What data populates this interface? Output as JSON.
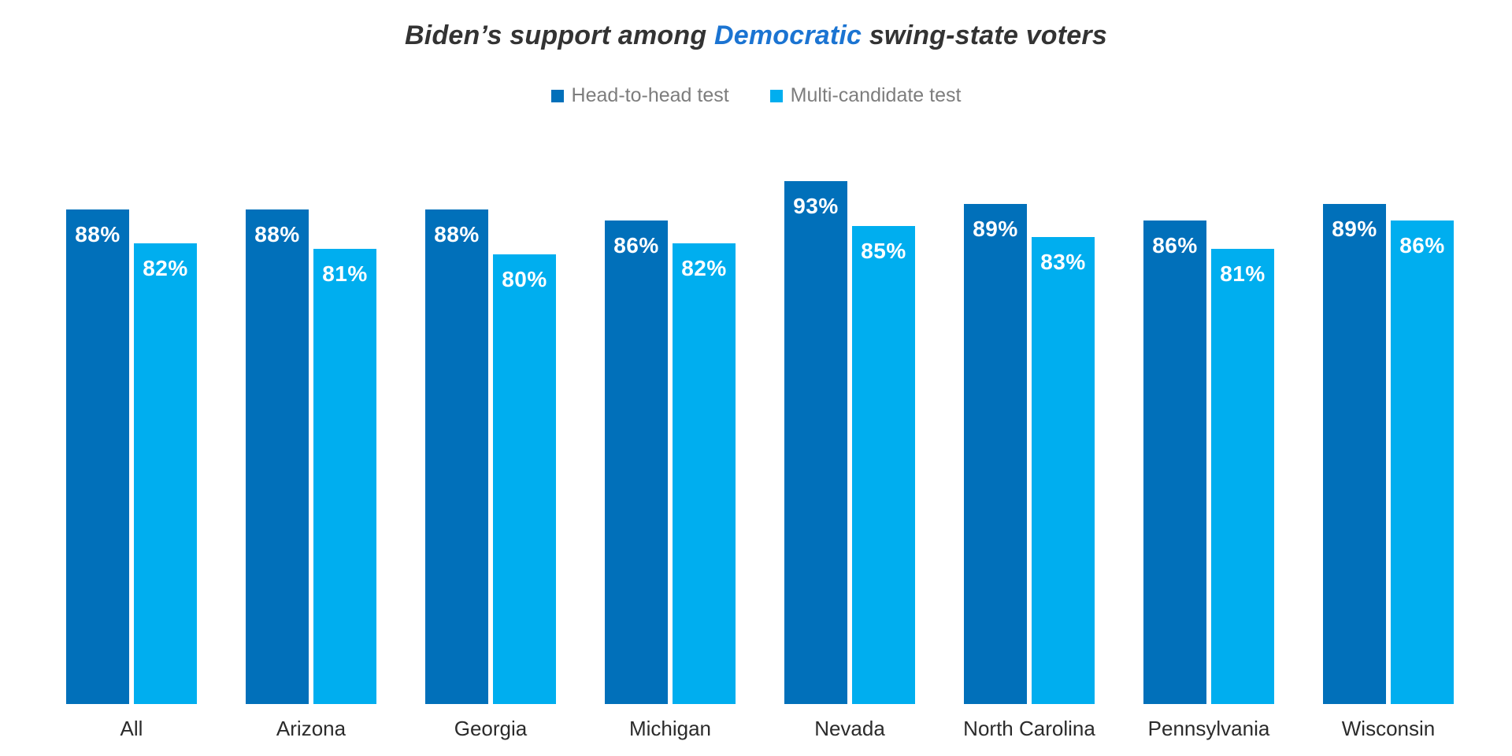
{
  "title": {
    "prefix": "Biden’s support among ",
    "highlight": "Democratic",
    "suffix": " swing-state voters",
    "color": "#333333",
    "highlight_color": "#1b74d2"
  },
  "legend": [
    {
      "label": "Head-to-head test",
      "color": "#0170ba"
    },
    {
      "label": "Multi-candidate test",
      "color": "#00aeef"
    }
  ],
  "chart_data": {
    "type": "bar",
    "title": "Biden’s support among Democratic swing-state voters",
    "categories": [
      "All",
      "Arizona",
      "Georgia",
      "Michigan",
      "Nevada",
      "North Carolina",
      "Pennsylvania",
      "Wisconsin"
    ],
    "series": [
      {
        "name": "Head-to-head test",
        "color": "#0170ba",
        "values": [
          88,
          88,
          88,
          86,
          93,
          89,
          86,
          89
        ]
      },
      {
        "name": "Multi-candidate test",
        "color": "#00aeef",
        "values": [
          82,
          81,
          80,
          82,
          85,
          83,
          81,
          86
        ]
      }
    ],
    "value_suffix": "%",
    "bar_labels": true,
    "bar_label_color": "#ffffff",
    "xlabel": "",
    "ylabel": "",
    "ylim": [
      0,
      100
    ],
    "grid": false,
    "legend_position": "top"
  }
}
